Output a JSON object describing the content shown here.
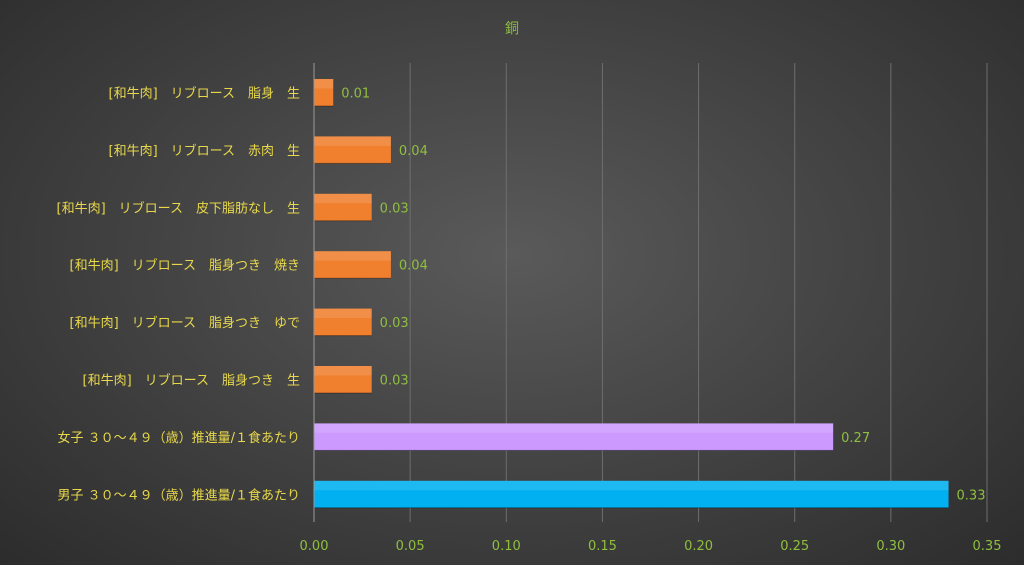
{
  "chart_data": {
    "type": "bar",
    "orientation": "horizontal",
    "title": "銅",
    "categories": [
      "[和牛肉]　リブロース　脂身　生",
      "[和牛肉]　リブロース　赤肉　生",
      "[和牛肉]　リブロース　皮下脂肪なし　生",
      "[和牛肉]　リブロース　脂身つき　焼き",
      "[和牛肉]　リブロース　脂身つき　ゆで",
      "[和牛肉]　リブロース　脂身つき　生",
      "女子 ３０～４９（歳）推進量/１食あたり",
      "男子 ３０～４９（歳）推進量/１食あたり"
    ],
    "values": [
      0.01,
      0.04,
      0.03,
      0.04,
      0.03,
      0.03,
      0.27,
      0.33
    ],
    "value_labels": [
      "0.01",
      "0.04",
      "0.03",
      "0.04",
      "0.03",
      "0.03",
      "0.27",
      "0.33"
    ],
    "bar_colors": [
      "#f07f2e",
      "#f07f2e",
      "#f07f2e",
      "#f07f2e",
      "#f07f2e",
      "#f07f2e",
      "#cc99ff",
      "#00b0f0"
    ],
    "xlim": [
      0,
      0.35
    ],
    "xticks": [
      "0.00",
      "0.05",
      "0.10",
      "0.15",
      "0.20",
      "0.25",
      "0.30",
      "0.35"
    ],
    "xtick_values": [
      0,
      0.05,
      0.1,
      0.15,
      0.2,
      0.25,
      0.3,
      0.35
    ],
    "grid": true,
    "legend": "none"
  }
}
